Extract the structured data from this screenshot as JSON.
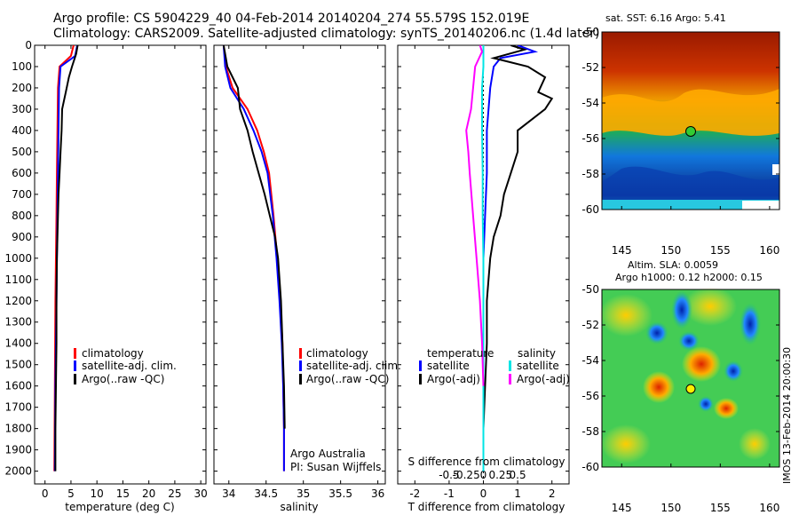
{
  "header": {
    "line1": "Argo profile: CS 5904229_40 04-Feb-2014 20140204_274 55.579S 152.019E",
    "line2": "Climatology: CARS2009. Satellite-adjusted climatology: synTS_20140206.nc (1.4d later)"
  },
  "colors": {
    "climatology": "#ff0000",
    "satellite": "#0000ff",
    "argo": "#000000",
    "sal_sat": "#00e5e5",
    "sal_argo": "#ff00ff"
  },
  "chart_data": [
    {
      "type": "line",
      "id": "temperature",
      "xlabel": "temperature (deg C)",
      "ylabel": "",
      "xlim": [
        -2,
        31
      ],
      "ylim": [
        2060,
        0
      ],
      "xticks": [
        "0",
        "5",
        "10",
        "15",
        "20",
        "25",
        "30"
      ],
      "yticks": [
        "0",
        "100",
        "200",
        "300",
        "400",
        "500",
        "600",
        "700",
        "800",
        "900",
        "1000",
        "1100",
        "1200",
        "1300",
        "1400",
        "1500",
        "1600",
        "1700",
        "1800",
        "1900",
        "2000"
      ],
      "legend": [
        "climatology",
        "satellite-adj. clim.",
        "Argo(..raw -QC)"
      ],
      "series": [
        {
          "name": "climatology",
          "x": [
            5.5,
            5.0,
            2.8,
            2.5,
            2.4,
            2.3,
            2.2,
            2.1,
            2.0,
            1.95,
            1.9,
            1.85,
            1.8
          ],
          "y": [
            0,
            50,
            100,
            200,
            400,
            600,
            800,
            1000,
            1200,
            1400,
            1600,
            1800,
            2000
          ]
        },
        {
          "name": "satellite-adj. clim.",
          "x": [
            6.2,
            5.8,
            3.0,
            2.7,
            2.6,
            2.5,
            2.4,
            2.3,
            2.2,
            2.1,
            2.0,
            1.95,
            1.9
          ],
          "y": [
            0,
            50,
            100,
            200,
            400,
            600,
            800,
            1000,
            1200,
            1400,
            1600,
            1800,
            2000
          ]
        },
        {
          "name": "Argo(..raw -QC)",
          "x": [
            6.3,
            6.0,
            5.2,
            4.6,
            4.0,
            3.3,
            3.2,
            3.0,
            2.8,
            2.6,
            2.5,
            2.4,
            2.3,
            2.2,
            2.2,
            2.1,
            2.0,
            2.0
          ],
          "y": [
            0,
            40,
            100,
            150,
            220,
            300,
            400,
            500,
            600,
            700,
            800,
            900,
            1000,
            1200,
            1400,
            1600,
            1800,
            2000
          ]
        }
      ]
    },
    {
      "type": "line",
      "id": "salinity",
      "xlabel": "salinity",
      "xlim": [
        33.8,
        36.1
      ],
      "ylim": [
        2060,
        0
      ],
      "xticks": [
        "34",
        "34.5",
        "35",
        "35.5",
        "36"
      ],
      "legend": [
        "climatology",
        "satellite-adj. clim.",
        "Argo(..raw -QC)"
      ],
      "annotation": [
        "Argo Australia",
        "PI: Susan Wijffels"
      ],
      "series": [
        {
          "name": "climatology",
          "x": [
            33.93,
            33.96,
            34.05,
            34.25,
            34.38,
            34.47,
            34.54,
            34.6,
            34.65,
            34.69,
            34.72,
            34.73,
            34.74,
            34.74
          ],
          "y": [
            0,
            100,
            200,
            300,
            400,
            500,
            600,
            800,
            1000,
            1200,
            1400,
            1600,
            1800,
            2000
          ]
        },
        {
          "name": "satellite-adj. clim.",
          "x": [
            33.93,
            33.95,
            34.02,
            34.2,
            34.33,
            34.44,
            34.52,
            34.59,
            34.64,
            34.68,
            34.71,
            34.73,
            34.74,
            34.74
          ],
          "y": [
            0,
            100,
            200,
            300,
            400,
            500,
            600,
            800,
            1000,
            1200,
            1400,
            1600,
            1800,
            2000
          ]
        },
        {
          "name": "Argo(..raw -QC)",
          "x": [
            33.93,
            33.98,
            34.12,
            34.15,
            34.25,
            34.32,
            34.4,
            34.48,
            34.55,
            34.62,
            34.66,
            34.7,
            34.72,
            34.74,
            34.75
          ],
          "y": [
            0,
            100,
            200,
            300,
            400,
            500,
            600,
            700,
            800,
            900,
            1000,
            1200,
            1400,
            1600,
            1800
          ]
        }
      ]
    },
    {
      "type": "line",
      "id": "difference",
      "xlabel": "T difference from climatology",
      "xlabel_top": "S difference from climatology",
      "xlim": [
        -2.5,
        2.5
      ],
      "ylim": [
        2060,
        0
      ],
      "xticks": [
        "-2",
        "-1",
        "0",
        "1",
        "2"
      ],
      "xticks_top": [
        "-0.5",
        "-0.25",
        "0",
        "0.25",
        "0.5"
      ],
      "legend_temperature_title": "temperature",
      "legend_salinity_title": "salinity",
      "legend": [
        "satellite",
        "Argo(-adj)",
        "satellite",
        "Argo(-adj)"
      ],
      "series": [
        {
          "name": "T satellite",
          "x": [
            1.0,
            1.5,
            0.5,
            0.3,
            0.2,
            0.1,
            0.1,
            0.05,
            0.0,
            0.0,
            0.0,
            0.0,
            0.0
          ],
          "y": [
            0,
            30,
            60,
            100,
            200,
            400,
            600,
            800,
            1000,
            1200,
            1400,
            1600,
            2000
          ]
        },
        {
          "name": "T Argo(-adj)",
          "x": [
            0.8,
            1.2,
            0.3,
            1.3,
            1.8,
            1.6,
            2.0,
            1.8,
            1.0,
            1.0,
            0.8,
            0.6,
            0.5,
            0.3,
            0.2,
            0.1,
            0.1,
            0.05,
            0.0,
            0.0
          ],
          "y": [
            0,
            20,
            60,
            100,
            150,
            220,
            250,
            300,
            400,
            500,
            600,
            700,
            800,
            900,
            1000,
            1200,
            1400,
            1600,
            1800,
            2000
          ]
        },
        {
          "name": "S satellite",
          "x": [
            0.0,
            0.0,
            -0.02,
            -0.02,
            -0.01,
            -0.01,
            0.0,
            0.0,
            0.0,
            0.0,
            0.0
          ],
          "y": [
            0,
            100,
            200,
            400,
            600,
            800,
            1000,
            1200,
            1400,
            1600,
            2000
          ]
        },
        {
          "name": "S Argo(-adj)",
          "x": [
            -0.05,
            -0.02,
            -0.12,
            -0.15,
            -0.18,
            -0.25,
            -0.22,
            -0.2,
            -0.15,
            -0.1,
            -0.05,
            -0.02,
            0.0
          ],
          "y": [
            0,
            30,
            100,
            200,
            300,
            400,
            500,
            600,
            800,
            1000,
            1200,
            1400,
            1600
          ]
        }
      ]
    },
    {
      "type": "heatmap",
      "id": "sst_map",
      "title": "sat. SST: 6.16  Argo: 5.41",
      "xlim": [
        143,
        161
      ],
      "ylim": [
        -60,
        -50
      ],
      "xticks": [
        "145",
        "150",
        "155",
        "160"
      ],
      "yticks": [
        "-50",
        "-52",
        "-54",
        "-56",
        "-58",
        "-60"
      ],
      "marker": {
        "lon": 152.0,
        "lat": -55.6
      }
    },
    {
      "type": "heatmap",
      "id": "sla_map",
      "title": "Altim. SLA: 0.0059",
      "subtitle": "Argo h1000: 0.12  h2000: 0.15",
      "xlim": [
        143,
        161
      ],
      "ylim": [
        -60,
        -50
      ],
      "xticks": [
        "145",
        "150",
        "155",
        "160"
      ],
      "yticks": [
        "-50",
        "-52",
        "-54",
        "-56",
        "-58",
        "-60"
      ],
      "marker": {
        "lon": 152.0,
        "lat": -55.6
      }
    }
  ],
  "watermark": "IMOS 13-Feb-2014 20:00:30"
}
